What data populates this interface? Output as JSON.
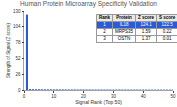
{
  "chart_data": {
    "type": "bar",
    "title": "Human Protein Microarray Specificity Validation",
    "x_label": "Signal Rank (Top 50)",
    "y_label": "Strength of Signal (Z score)",
    "x": [
      1,
      2,
      3,
      4,
      5,
      6,
      7,
      8,
      9,
      10,
      11,
      12,
      13,
      14,
      15,
      16,
      17,
      18,
      19,
      20,
      21,
      22,
      23,
      24,
      25,
      26,
      27,
      28,
      29,
      30,
      31,
      32,
      33,
      34,
      35,
      36,
      37,
      38,
      39,
      40,
      41,
      42,
      43,
      44,
      45,
      46,
      47,
      48,
      49,
      50
    ],
    "values": [
      124.1,
      1.59,
      1.37,
      1.3,
      1.25,
      1.2,
      1.16,
      1.12,
      1.1,
      1.07,
      1.05,
      1.03,
      1.01,
      0.99,
      0.97,
      0.96,
      0.94,
      0.93,
      0.92,
      0.9,
      0.89,
      0.88,
      0.87,
      0.86,
      0.85,
      0.84,
      0.83,
      0.82,
      0.81,
      0.8,
      0.79,
      0.78,
      0.77,
      0.77,
      0.76,
      0.75,
      0.74,
      0.74,
      0.73,
      0.72,
      0.72,
      0.71,
      0.7,
      0.7,
      0.69,
      0.68,
      0.68,
      0.67,
      0.67,
      0.66
    ],
    "color": "#2b5bd8",
    "xlim": [
      0,
      50
    ],
    "xticks": [
      0,
      10,
      20,
      30,
      40,
      50
    ],
    "ylim": [
      0,
      130
    ],
    "yticks": [
      0,
      26,
      52,
      78,
      104,
      130
    ],
    "grid": false,
    "table": {
      "columns": [
        "Rank",
        "Protein",
        "Z score",
        "S score"
      ],
      "rows": [
        [
          1,
          "IL18",
          124.1,
          122.5
        ],
        [
          2,
          "MRPS35",
          1.59,
          0.22
        ],
        [
          3,
          "OSTN",
          1.37,
          0.01
        ]
      ]
    }
  }
}
